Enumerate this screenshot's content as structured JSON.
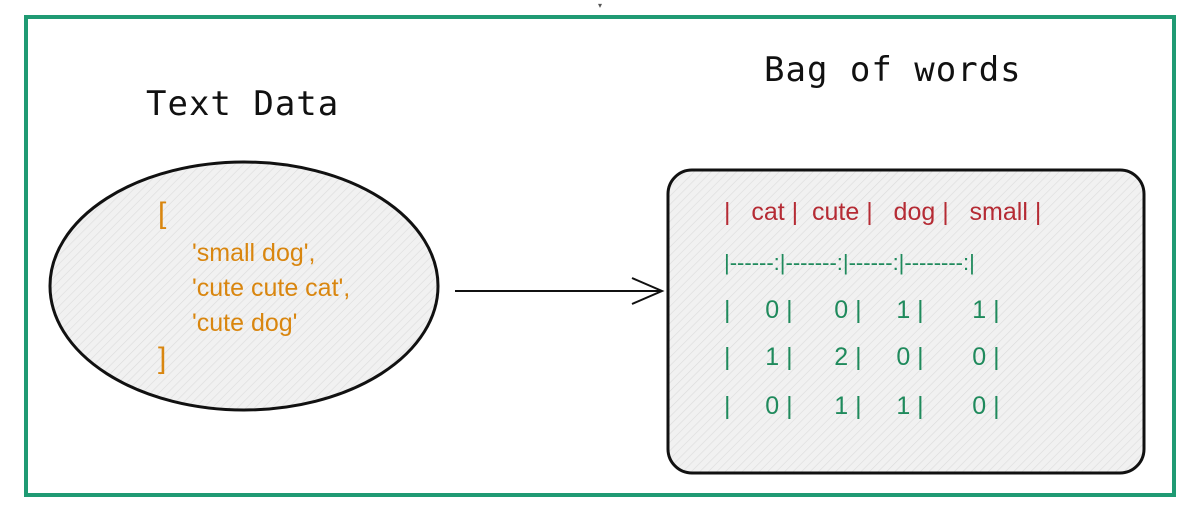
{
  "titles": {
    "left": "Text Data",
    "right": "Bag of words"
  },
  "text_data": {
    "open": "[",
    "lines": [
      "'small dog',",
      "'cute cute cat',",
      "'cute dog'"
    ],
    "close": "]"
  },
  "bag_of_words": {
    "header": "|   cat |  cute |   dog |   small |",
    "separator": "|------:|-------:|------:|--------:|",
    "rows": [
      "|     0 |      0 |     1 |       1 |",
      "|     1 |      2 |     0 |       0 |",
      "|     0 |      1 |     1 |       0 |"
    ]
  },
  "colors": {
    "frame": "#1f9a73",
    "code_text": "#d9860f",
    "header": "#b52b34",
    "values": "#1f8a5c"
  }
}
